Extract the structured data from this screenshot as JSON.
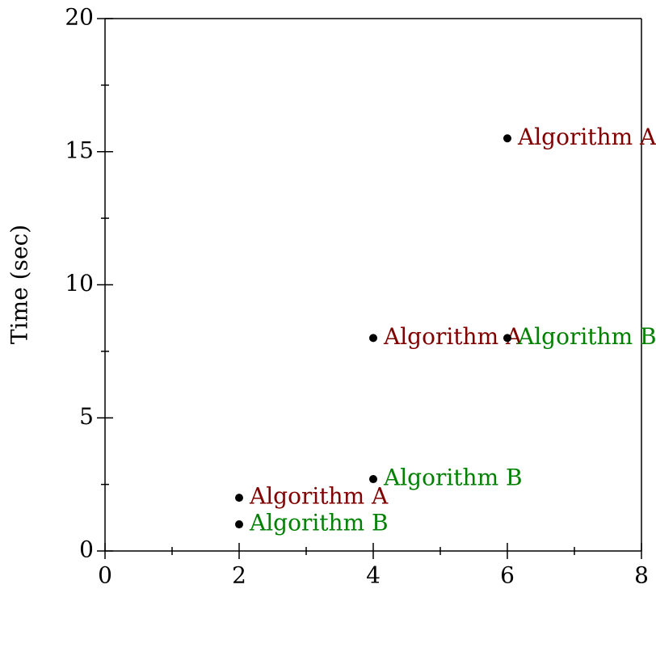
{
  "chart_data": {
    "type": "scatter",
    "y_label": "Time (sec)",
    "series": [
      {
        "name": "Algorithm A",
        "color": "#800000",
        "x": [
          2,
          4,
          6
        ],
        "values": [
          2,
          8,
          15.5
        ]
      },
      {
        "name": "Algorithm B",
        "color": "#008000",
        "x": [
          2,
          4,
          6
        ],
        "values": [
          1,
          2.7,
          8
        ]
      }
    ],
    "point_color": "#000000",
    "xlim": [
      0,
      8
    ],
    "xticks": [
      0,
      2,
      4,
      6,
      8
    ],
    "xminorticks": [
      1,
      3,
      5,
      7
    ],
    "ylim": [
      0,
      20
    ],
    "yticks": [
      0,
      5,
      10,
      15,
      20
    ],
    "yminorticks": [
      2.5,
      7.5,
      12.5,
      17.5
    ]
  }
}
